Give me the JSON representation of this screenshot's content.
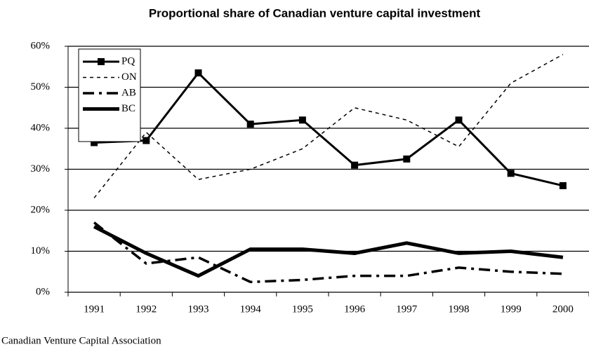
{
  "chart_data": {
    "type": "line",
    "title": "Proportional share of Canadian venture capital investment",
    "source": "Canadian Venture Capital Association",
    "categories": [
      "1991",
      "1992",
      "1993",
      "1994",
      "1995",
      "1996",
      "1997",
      "1998",
      "1999",
      "2000"
    ],
    "series": [
      {
        "name": "PQ",
        "color": "#000000",
        "values": [
          36.5,
          37,
          53.5,
          41,
          42,
          31,
          32.5,
          42,
          29,
          26
        ]
      },
      {
        "name": "ON",
        "color": "#000000",
        "values": [
          23,
          39,
          27.5,
          30,
          35,
          45,
          42,
          35.5,
          51,
          58
        ]
      },
      {
        "name": "AB",
        "color": "#000000",
        "values": [
          17,
          7,
          8.5,
          2.5,
          3,
          4,
          4,
          6,
          5,
          4.5
        ]
      },
      {
        "name": "BC",
        "color": "#000000",
        "values": [
          16,
          9.5,
          4,
          10.5,
          10.5,
          9.5,
          12,
          9.5,
          10,
          8.5
        ]
      }
    ],
    "ylim": [
      0,
      60
    ],
    "yticks": [
      {
        "value": 0,
        "label": "0%"
      },
      {
        "value": 10,
        "label": "10%"
      },
      {
        "value": 20,
        "label": "20%"
      },
      {
        "value": 30,
        "label": "30%"
      },
      {
        "value": 40,
        "label": "40%"
      },
      {
        "value": 50,
        "label": "50%"
      },
      {
        "value": 60,
        "label": "60%"
      }
    ],
    "grid": true,
    "legend": "upper-left"
  }
}
